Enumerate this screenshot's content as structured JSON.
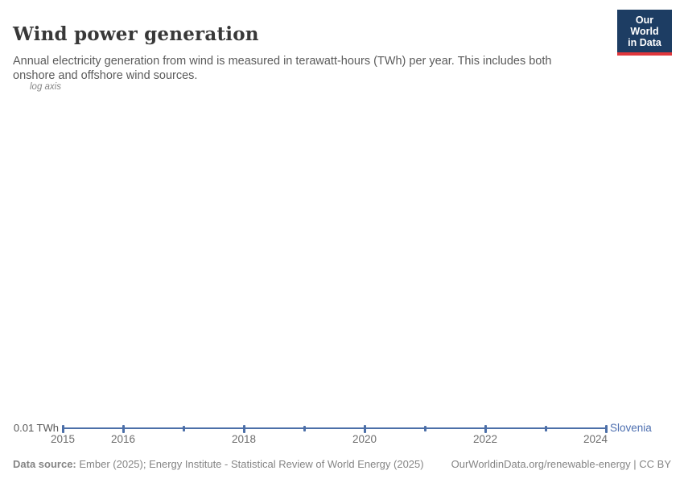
{
  "header": {
    "title": "Wind power generation",
    "subtitle": "Annual electricity generation from wind is measured in terawatt-hours (TWh) per year. This includes both onshore and offshore wind sources.",
    "logo": {
      "line1": "Our World",
      "line2": "in Data",
      "bg_color": "#1d3d63",
      "accent_color": "#e0373c"
    }
  },
  "chart_data": {
    "type": "line",
    "title": "Wind power generation",
    "scale": "log",
    "axis_note": "log axis",
    "x": [
      2015,
      2016,
      2017,
      2018,
      2019,
      2020,
      2021,
      2022,
      2023,
      2024
    ],
    "series": [
      {
        "name": "Slovenia",
        "color": "#4C6FA8",
        "label_color": "#4d6fb0",
        "values": [
          0.01,
          0.01,
          0.01,
          0.01,
          0.01,
          0.01,
          0.01,
          0.01,
          0.01,
          0.01
        ]
      }
    ],
    "x_tick_labels": [
      "2015",
      "2016",
      "2018",
      "2020",
      "2022",
      "2024"
    ],
    "y_tick_label": "0.01 TWh",
    "ylabel": "",
    "xlabel": "",
    "grid": "off",
    "legend_position": "end-of-line"
  },
  "footer": {
    "data_source_label": "Data source:",
    "data_source_text": "Ember (2025); Energy Institute - Statistical Review of World Energy (2025)",
    "url_note": "OurWorldinData.org/renewable-energy | CC BY"
  }
}
